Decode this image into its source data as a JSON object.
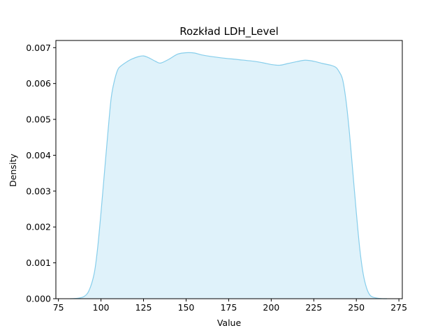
{
  "chart_data": {
    "type": "area",
    "title": "Rozkład LDH_Level",
    "xlabel": "Value",
    "ylabel": "Density",
    "xlim": [
      73.5,
      277
    ],
    "ylim": [
      0,
      0.0072
    ],
    "xticks": [
      75,
      100,
      125,
      150,
      175,
      200,
      225,
      250,
      275
    ],
    "yticks": [
      0.0,
      0.001,
      0.002,
      0.003,
      0.004,
      0.005,
      0.006,
      0.007
    ],
    "ytick_labels": [
      "0.000",
      "0.001",
      "0.002",
      "0.003",
      "0.004",
      "0.005",
      "0.006",
      "0.007"
    ],
    "grid": false,
    "colors": {
      "line": "#87ceeb",
      "fill": "#87ceeb",
      "fill_opacity": 0.27
    },
    "series": [
      {
        "x": [
          82,
          86,
          90,
          93,
          96,
          98,
          100,
          102,
          104,
          106,
          108,
          110,
          112,
          115,
          118,
          122,
          125,
          128,
          132,
          135,
          140,
          145,
          150,
          155,
          160,
          170,
          180,
          190,
          195,
          200,
          205,
          210,
          215,
          220,
          225,
          230,
          235,
          238,
          240,
          242,
          244,
          246,
          248,
          250,
          252,
          254,
          256,
          258,
          260,
          263,
          266,
          268
        ],
        "y": [
          0.0,
          1e-05,
          6e-05,
          0.00023,
          0.0007,
          0.0014,
          0.0024,
          0.0035,
          0.0046,
          0.0056,
          0.0061,
          0.0064,
          0.0065,
          0.0066,
          0.00668,
          0.00675,
          0.00677,
          0.00672,
          0.00662,
          0.00657,
          0.00668,
          0.00682,
          0.00686,
          0.00685,
          0.00679,
          0.00672,
          0.00667,
          0.00662,
          0.00658,
          0.00653,
          0.00651,
          0.00656,
          0.00661,
          0.00665,
          0.00662,
          0.00656,
          0.00651,
          0.00645,
          0.00632,
          0.0061,
          0.0055,
          0.0046,
          0.0035,
          0.0024,
          0.0014,
          0.0007,
          0.0003,
          0.0001,
          4e-05,
          1e-05,
          0.0,
          0.0
        ]
      }
    ]
  }
}
